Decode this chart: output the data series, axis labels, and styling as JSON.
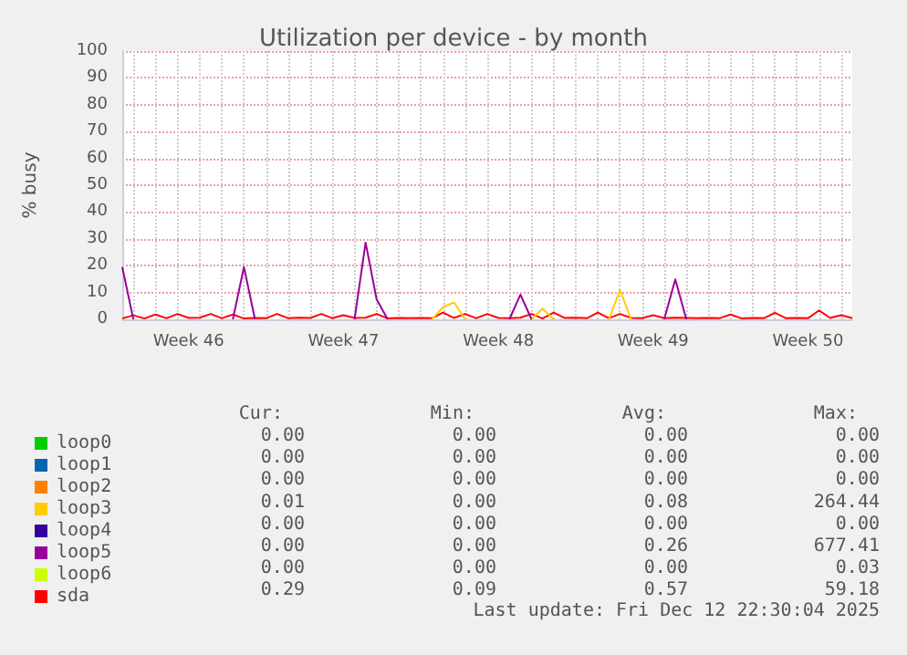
{
  "chart_data": {
    "type": "line",
    "title": "Utilization per device - by month",
    "ylabel": "% busy",
    "categories": [
      null,
      null,
      null,
      null,
      null,
      null,
      "Week 46",
      null,
      null,
      null,
      null,
      null,
      null,
      null,
      null,
      null,
      null,
      null,
      null,
      null,
      "Week 47",
      null,
      null,
      null,
      null,
      null,
      null,
      null,
      null,
      null,
      null,
      null,
      null,
      null,
      "Week 48",
      null,
      null,
      null,
      null,
      null,
      null,
      null,
      null,
      null,
      null,
      null,
      null,
      null,
      "Week 49",
      null,
      null,
      null,
      null,
      null,
      null,
      null,
      null,
      null,
      null,
      null,
      null,
      null,
      "Week 50",
      null,
      null,
      null,
      null
    ],
    "ylim": [
      0,
      100
    ],
    "yticks": [
      0,
      10,
      20,
      30,
      40,
      50,
      60,
      70,
      80,
      90,
      100
    ],
    "grid": true,
    "legend": "bottom",
    "marker": "none",
    "line_style": "solid",
    "series": [
      {
        "name": "loop0",
        "color": "#00cc00",
        "values": [
          null,
          null,
          null,
          null,
          null,
          null,
          null,
          null,
          null,
          null,
          null,
          null,
          null,
          null,
          null,
          null,
          null,
          null,
          null,
          null,
          null,
          null,
          null,
          null,
          null,
          null,
          null,
          null,
          null,
          null,
          null,
          null,
          null,
          null,
          null,
          null,
          null,
          null,
          null,
          null,
          null,
          null,
          null,
          null,
          null,
          null,
          null,
          null,
          null,
          null,
          null,
          null,
          null,
          null,
          null,
          null,
          null,
          null,
          null,
          null,
          null,
          null,
          null,
          null,
          null,
          null,
          null
        ]
      },
      {
        "name": "loop1",
        "color": "#0066b3",
        "values": [
          null,
          null,
          null,
          null,
          null,
          null,
          null,
          null,
          null,
          null,
          null,
          null,
          null,
          null,
          null,
          null,
          null,
          null,
          null,
          null,
          null,
          null,
          null,
          null,
          null,
          null,
          null,
          null,
          null,
          null,
          null,
          null,
          null,
          null,
          null,
          null,
          null,
          null,
          null,
          null,
          null,
          null,
          null,
          null,
          null,
          null,
          null,
          null,
          null,
          null,
          null,
          null,
          null,
          null,
          null,
          null,
          null,
          null,
          null,
          null,
          null,
          null,
          null,
          null,
          null,
          null,
          null
        ]
      },
      {
        "name": "loop2",
        "color": "#ff8000",
        "values": [
          null,
          null,
          null,
          null,
          null,
          null,
          null,
          null,
          null,
          null,
          null,
          null,
          null,
          null,
          null,
          null,
          null,
          null,
          null,
          null,
          null,
          null,
          null,
          null,
          null,
          null,
          null,
          null,
          null,
          null,
          null,
          null,
          null,
          null,
          null,
          null,
          null,
          null,
          null,
          null,
          null,
          null,
          null,
          null,
          null,
          null,
          null,
          null,
          null,
          null,
          null,
          null,
          null,
          null,
          null,
          null,
          null,
          null,
          null,
          null,
          null,
          null,
          null,
          null,
          null,
          null,
          null
        ]
      },
      {
        "name": "loop3",
        "color": "#ffcc00",
        "values": [
          null,
          null,
          null,
          null,
          null,
          null,
          null,
          null,
          null,
          null,
          null,
          null,
          null,
          null,
          null,
          null,
          null,
          null,
          null,
          null,
          null,
          null,
          null,
          null,
          null,
          null,
          null,
          null,
          0,
          4.6,
          6.3,
          0,
          null,
          null,
          null,
          null,
          null,
          0,
          4.0,
          0,
          null,
          null,
          null,
          null,
          0,
          10.9,
          0,
          null,
          null,
          null,
          null,
          null,
          null,
          null,
          null,
          null,
          null,
          null,
          null,
          null,
          null,
          null,
          null,
          null,
          null,
          null,
          null
        ]
      },
      {
        "name": "loop4",
        "color": "#330099",
        "values": [
          null,
          null,
          null,
          null,
          null,
          null,
          null,
          null,
          null,
          null,
          null,
          null,
          null,
          null,
          null,
          null,
          null,
          null,
          null,
          null,
          null,
          null,
          null,
          null,
          null,
          null,
          null,
          null,
          null,
          null,
          null,
          null,
          null,
          null,
          null,
          null,
          null,
          null,
          null,
          null,
          null,
          null,
          null,
          null,
          null,
          null,
          null,
          null,
          null,
          null,
          null,
          null,
          null,
          null,
          null,
          null,
          null,
          null,
          null,
          null,
          null,
          null,
          null,
          null,
          null,
          null,
          null
        ]
      },
      {
        "name": "loop5",
        "color": "#990099",
        "values": [
          19.5,
          0,
          null,
          null,
          null,
          null,
          null,
          null,
          null,
          null,
          0,
          19.5,
          0,
          null,
          null,
          null,
          null,
          null,
          null,
          null,
          null,
          0,
          28.6,
          7.4,
          0,
          null,
          null,
          null,
          null,
          null,
          null,
          null,
          null,
          null,
          null,
          0,
          9.2,
          0,
          null,
          null,
          null,
          null,
          null,
          null,
          null,
          null,
          null,
          null,
          null,
          0,
          14.9,
          0,
          null,
          null,
          null,
          null,
          null,
          null,
          null,
          null,
          null,
          null,
          null,
          null,
          null,
          null,
          null
        ]
      },
      {
        "name": "loop6",
        "color": "#ccff00",
        "values": [
          null,
          null,
          null,
          null,
          null,
          null,
          null,
          null,
          null,
          null,
          null,
          null,
          null,
          null,
          null,
          null,
          null,
          null,
          null,
          null,
          null,
          null,
          null,
          null,
          null,
          null,
          null,
          null,
          null,
          null,
          null,
          null,
          null,
          null,
          null,
          null,
          null,
          null,
          null,
          null,
          null,
          null,
          null,
          null,
          null,
          null,
          null,
          null,
          null,
          null,
          null,
          null,
          null,
          null,
          null,
          null,
          null,
          null,
          null,
          null,
          null,
          null,
          null,
          null,
          null,
          null,
          null
        ]
      },
      {
        "name": "sda",
        "color": "#ff0000",
        "values": [
          0.3,
          1.5,
          0.3,
          1.8,
          0.4,
          2.0,
          0.5,
          0.6,
          2.0,
          0.4,
          1.8,
          0.3,
          0.5,
          0.4,
          2.0,
          0.4,
          0.6,
          0.5,
          2.0,
          0.4,
          1.5,
          0.5,
          0.6,
          2.0,
          0.3,
          0.5,
          0.4,
          0.5,
          0.4,
          2.5,
          0.5,
          2.0,
          0.4,
          2.0,
          0.5,
          0.4,
          0.6,
          2.0,
          0.3,
          2.5,
          0.5,
          0.6,
          0.4,
          2.5,
          0.4,
          2.0,
          0.5,
          0.4,
          1.5,
          0.4,
          0.6,
          0.5,
          0.4,
          0.5,
          0.4,
          1.8,
          0.3,
          0.5,
          0.4,
          2.4,
          0.4,
          0.5,
          0.4,
          3.3,
          0.5,
          1.5,
          0.4
        ]
      }
    ],
    "annotations": [
      "Cur:",
      "Min:",
      "Avg:",
      "Max:",
      "0.00",
      "0.00",
      "0.00",
      "0.00",
      "0.00",
      "0.00",
      "0.00",
      "0.00",
      "0.00",
      "0.00",
      "0.00",
      "0.00",
      "0.01",
      "0.00",
      "0.08",
      "264.44",
      "0.00",
      "0.00",
      "0.00",
      "0.00",
      "0.00",
      "0.00",
      "0.26",
      "677.41",
      "0.00",
      "0.00",
      "0.00",
      "0.03",
      "0.29",
      "0.09",
      "0.57",
      "59.18",
      "Last update: Fri Dec 12 22:30:04 2025"
    ]
  }
}
